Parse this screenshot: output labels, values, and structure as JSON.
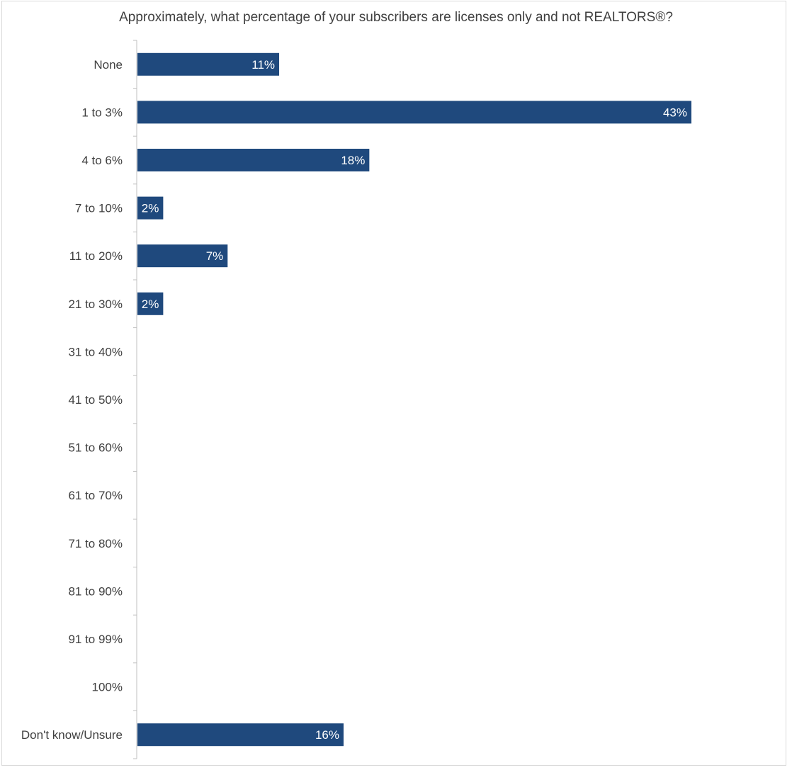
{
  "chart_data": {
    "type": "bar",
    "orientation": "horizontal",
    "title": "Approximately, what percentage of your subscribers are licenses only and not REALTORS®?",
    "categories": [
      "None",
      "1 to 3%",
      "4 to 6%",
      "7 to 10%",
      "11 to 20%",
      "21 to 30%",
      "31 to 40%",
      "41 to 50%",
      "51 to 60%",
      "61 to 70%",
      "71 to 80%",
      "81 to 90%",
      "91 to 99%",
      "100%",
      "Don't know/Unsure"
    ],
    "values": [
      11,
      43,
      18,
      2,
      7,
      2,
      0,
      0,
      0,
      0,
      0,
      0,
      0,
      0,
      16
    ],
    "data_labels": [
      "11%",
      "43%",
      "18%",
      "2%",
      "7%",
      "2%",
      "",
      "",
      "",
      "",
      "",
      "",
      "",
      "",
      "16%"
    ],
    "xlabel": "",
    "ylabel": "",
    "xlim": [
      0,
      43
    ],
    "grid": false,
    "legend": "none",
    "bar_color": "#1f497d"
  }
}
